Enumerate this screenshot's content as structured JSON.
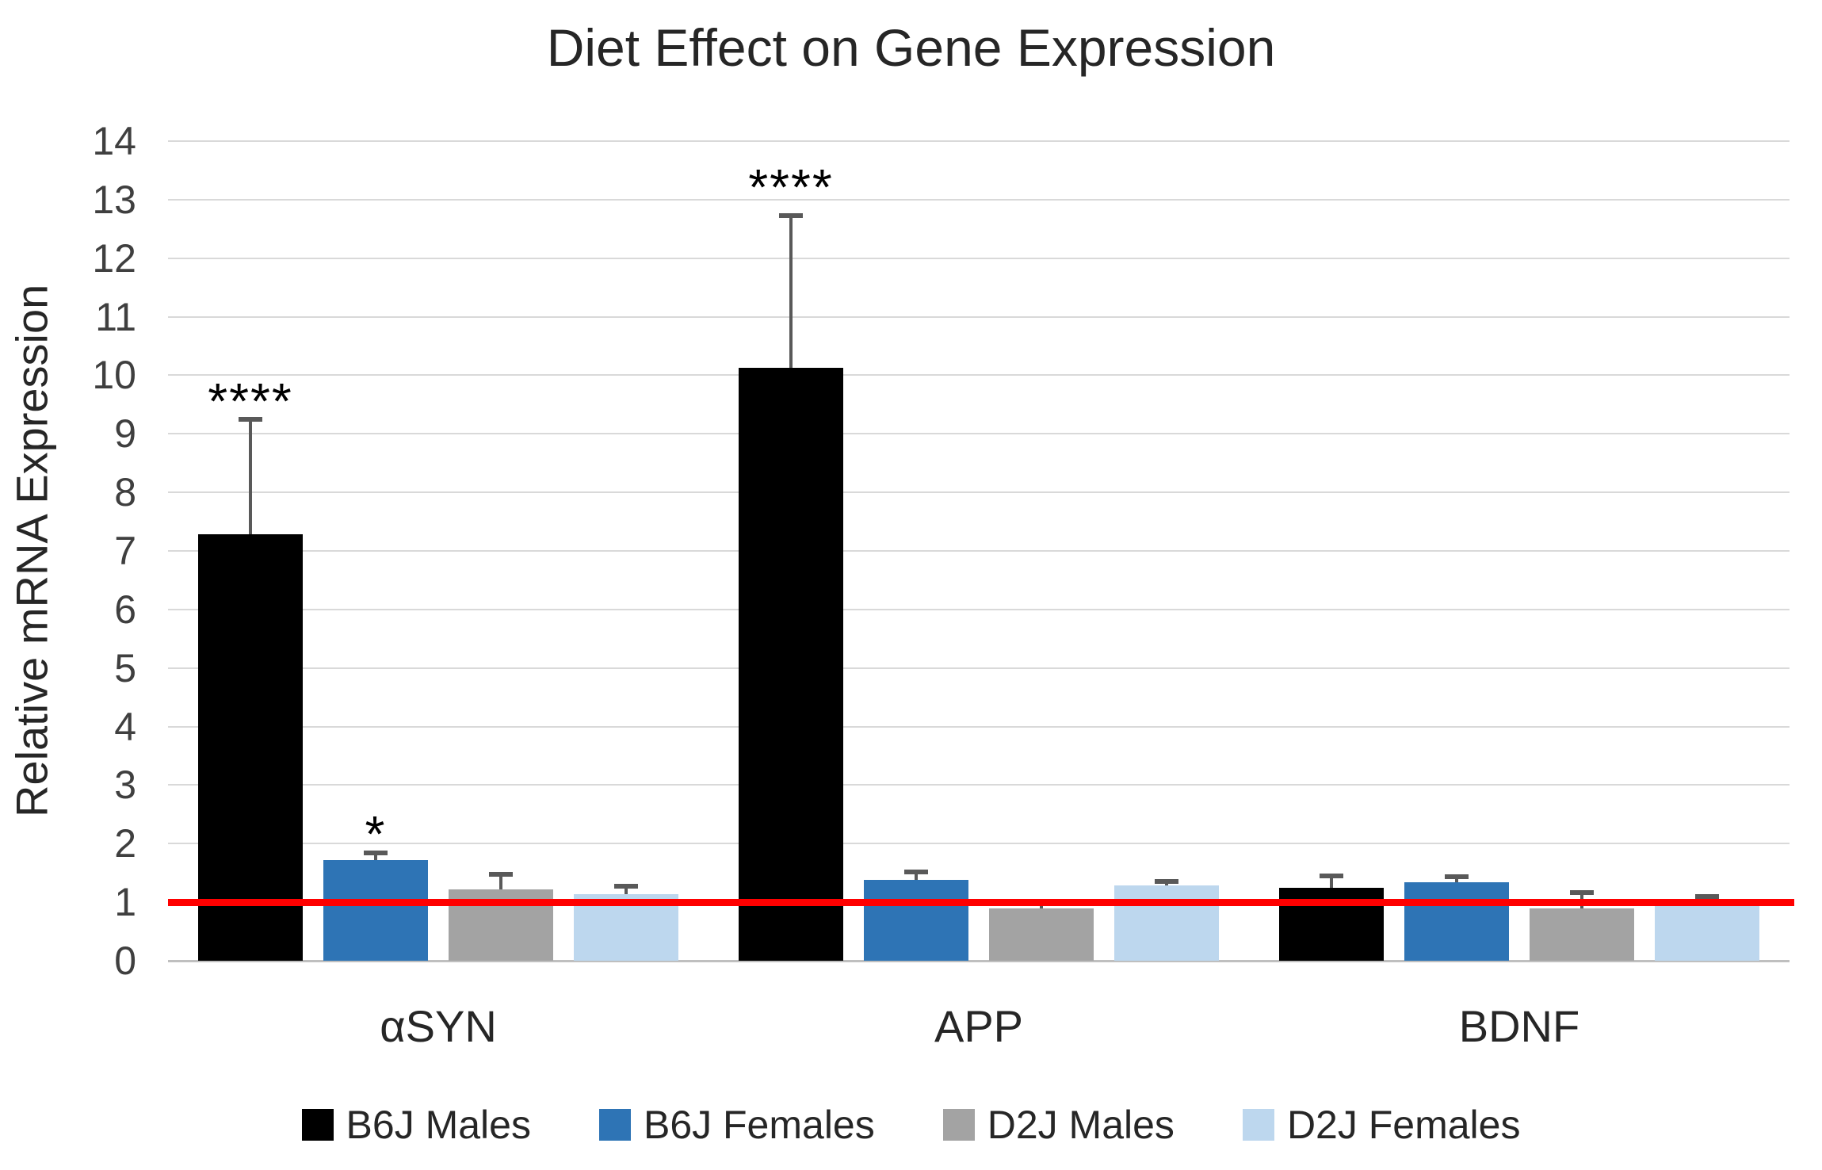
{
  "chart_data": {
    "type": "bar",
    "title": "Diet Effect on Gene Expression",
    "ylabel": "Relative mRNA Expression",
    "xlabel": "",
    "categories": [
      "αSYN",
      "APP",
      "BDNF"
    ],
    "series": [
      {
        "name": "B6J Males",
        "color": "#000000",
        "values": [
          7.28,
          10.13,
          1.25
        ],
        "error_up": [
          1.97,
          2.6,
          0.2
        ]
      },
      {
        "name": "B6J Females",
        "color": "#2E74B5",
        "values": [
          1.72,
          1.38,
          1.34
        ],
        "error_up": [
          0.12,
          0.13,
          0.09
        ]
      },
      {
        "name": "D2J Males",
        "color": "#A3A3A3",
        "values": [
          1.22,
          0.9,
          0.9
        ],
        "error_up": [
          0.26,
          0.1,
          0.27
        ]
      },
      {
        "name": "D2J Females",
        "color": "#BDD7EE",
        "values": [
          1.14,
          1.28,
          0.96
        ],
        "error_up": [
          0.13,
          0.08,
          0.13
        ]
      }
    ],
    "annotations": [
      {
        "text": "****",
        "category": 0,
        "series": 0,
        "y": 9.75
      },
      {
        "text": "*",
        "category": 0,
        "series": 1,
        "y": 2.35
      },
      {
        "text": "****",
        "category": 1,
        "series": 0,
        "y": 13.4
      }
    ],
    "ylim": [
      0,
      14
    ],
    "yticks": [
      0,
      1,
      2,
      3,
      4,
      5,
      6,
      7,
      8,
      9,
      10,
      11,
      12,
      13,
      14
    ],
    "reference_line": {
      "y": 1,
      "color": "#FF0000"
    },
    "grid": true,
    "legend_position": "bottom",
    "error_bar_color": "#595959"
  }
}
